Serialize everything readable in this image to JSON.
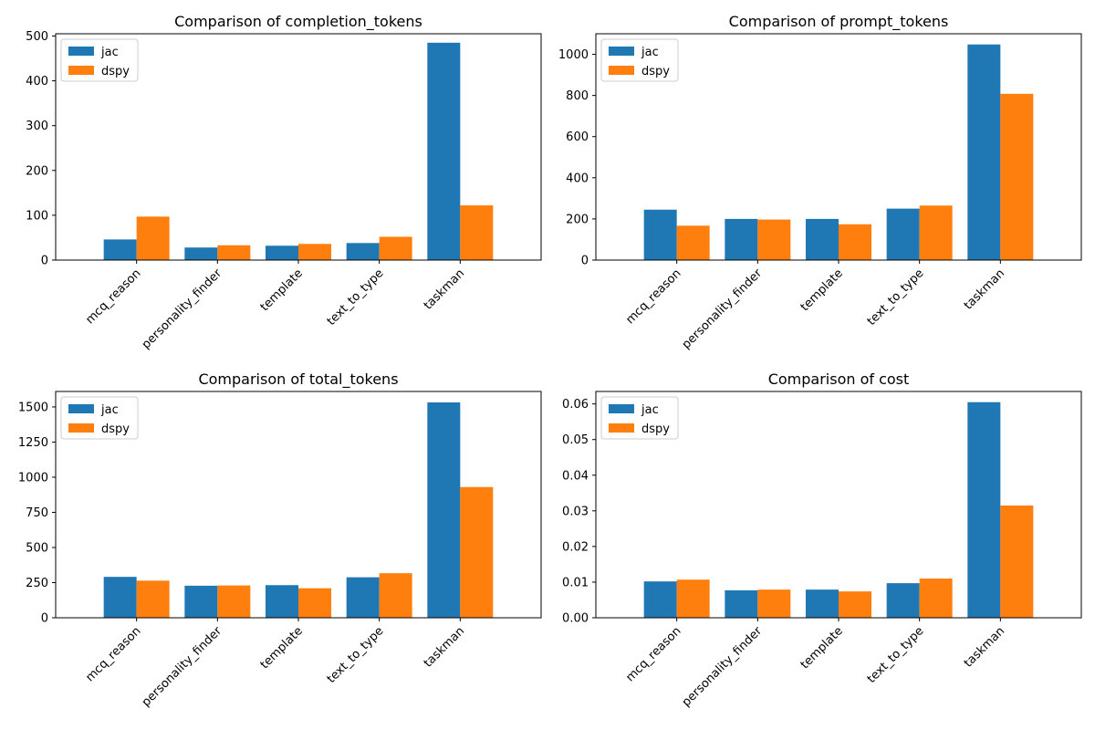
{
  "colors": {
    "jac": "#1f77b4",
    "dspy": "#ff7f0e"
  },
  "chart_data": [
    {
      "type": "bar",
      "title": "Comparison of completion_tokens",
      "categories": [
        "mcq_reason",
        "personality_finder",
        "template",
        "text_to_type",
        "taskman"
      ],
      "series": [
        {
          "name": "jac",
          "values": [
            46,
            28,
            32,
            38,
            485
          ]
        },
        {
          "name": "dspy",
          "values": [
            97,
            33,
            36,
            52,
            122
          ]
        }
      ],
      "ylim": [
        0,
        505
      ],
      "yticks": [
        0,
        100,
        200,
        300,
        400,
        500
      ],
      "ytick_labels": [
        "0",
        "100",
        "200",
        "300",
        "400",
        "500"
      ],
      "legend_location": "upper-left",
      "grid": false
    },
    {
      "type": "bar",
      "title": "Comparison of prompt_tokens",
      "categories": [
        "mcq_reason",
        "personality_finder",
        "template",
        "text_to_type",
        "taskman"
      ],
      "series": [
        {
          "name": "jac",
          "values": [
            245,
            200,
            200,
            250,
            1048
          ]
        },
        {
          "name": "dspy",
          "values": [
            167,
            197,
            174,
            265,
            808
          ]
        }
      ],
      "ylim": [
        0,
        1100
      ],
      "yticks": [
        0,
        200,
        400,
        600,
        800,
        1000
      ],
      "ytick_labels": [
        "0",
        "200",
        "400",
        "600",
        "800",
        "1000"
      ],
      "legend_location": "upper-left",
      "grid": false
    },
    {
      "type": "bar",
      "title": "Comparison of total_tokens",
      "categories": [
        "mcq_reason",
        "personality_finder",
        "template",
        "text_to_type",
        "taskman"
      ],
      "series": [
        {
          "name": "jac",
          "values": [
            291,
            228,
            232,
            288,
            1532
          ]
        },
        {
          "name": "dspy",
          "values": [
            264,
            230,
            210,
            317,
            930
          ]
        }
      ],
      "ylim": [
        0,
        1610
      ],
      "yticks": [
        0,
        250,
        500,
        750,
        1000,
        1250,
        1500
      ],
      "ytick_labels": [
        "0",
        "250",
        "500",
        "750",
        "1000",
        "1250",
        "1500"
      ],
      "legend_location": "upper-left",
      "grid": false
    },
    {
      "type": "bar",
      "title": "Comparison of cost",
      "categories": [
        "mcq_reason",
        "personality_finder",
        "template",
        "text_to_type",
        "taskman"
      ],
      "series": [
        {
          "name": "jac",
          "values": [
            0.0102,
            0.0077,
            0.0079,
            0.0097,
            0.0605
          ]
        },
        {
          "name": "dspy",
          "values": [
            0.0107,
            0.0079,
            0.0074,
            0.011,
            0.0315
          ]
        }
      ],
      "ylim": [
        0,
        0.0635
      ],
      "yticks": [
        0,
        0.01,
        0.02,
        0.03,
        0.04,
        0.05,
        0.06
      ],
      "ytick_labels": [
        "0.00",
        "0.01",
        "0.02",
        "0.03",
        "0.04",
        "0.05",
        "0.06"
      ],
      "legend_location": "upper-left",
      "grid": false
    }
  ]
}
